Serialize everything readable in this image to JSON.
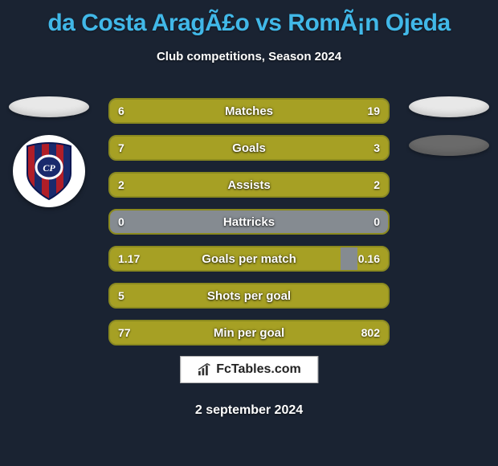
{
  "title": "da Costa AragÃ£o vs RomÃ¡n Ojeda",
  "subtitle": "Club competitions, Season 2024",
  "date": "2 september 2024",
  "logo_text": "FcTables.com",
  "colors": {
    "background": "#1a2332",
    "title": "#41b8e8",
    "text": "#ffffff",
    "bar_track": "#858b91",
    "bar_fill": "#a6a024",
    "bar_border": "#8b8a1f",
    "ellipse_light": "#e8e8e8",
    "ellipse_dark": "#6a6a6a",
    "crest_blue": "#1a2a6c",
    "crest_red": "#b01e28"
  },
  "stats": [
    {
      "label": "Matches",
      "left_val": "6",
      "right_val": "19",
      "left_pct": 24,
      "right_pct": 76
    },
    {
      "label": "Goals",
      "left_val": "7",
      "right_val": "3",
      "left_pct": 100,
      "right_pct": 0
    },
    {
      "label": "Assists",
      "left_val": "2",
      "right_val": "2",
      "left_pct": 100,
      "right_pct": 0
    },
    {
      "label": "Hattricks",
      "left_val": "0",
      "right_val": "0",
      "left_pct": 0,
      "right_pct": 0
    },
    {
      "label": "Goals per match",
      "left_val": "1.17",
      "right_val": "0.16",
      "left_pct": 83,
      "right_pct": 11
    },
    {
      "label": "Shots per goal",
      "left_val": "5",
      "right_val": "",
      "left_pct": 100,
      "right_pct": 0
    },
    {
      "label": "Min per goal",
      "left_val": "77",
      "right_val": "802",
      "left_pct": 11,
      "right_pct": 100
    }
  ],
  "left_badges": [
    {
      "type": "ellipse",
      "shade": "light"
    },
    {
      "type": "crest"
    }
  ],
  "right_badges": [
    {
      "type": "ellipse",
      "shade": "light"
    },
    {
      "type": "ellipse",
      "shade": "dark"
    }
  ]
}
